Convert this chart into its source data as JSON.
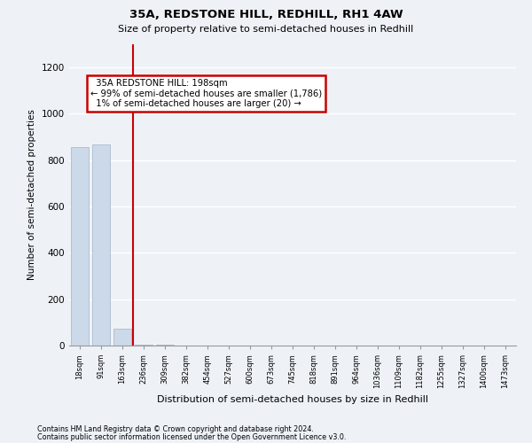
{
  "title": "35A, REDSTONE HILL, REDHILL, RH1 4AW",
  "subtitle": "Size of property relative to semi-detached houses in Redhill",
  "xlabel": "Distribution of semi-detached houses by size in Redhill",
  "ylabel": "Number of semi-detached properties",
  "footnote1": "Contains HM Land Registry data © Crown copyright and database right 2024.",
  "footnote2": "Contains public sector information licensed under the Open Government Licence v3.0.",
  "bin_labels": [
    "18sqm",
    "91sqm",
    "163sqm",
    "236sqm",
    "309sqm",
    "382sqm",
    "454sqm",
    "527sqm",
    "600sqm",
    "673sqm",
    "745sqm",
    "818sqm",
    "891sqm",
    "964sqm",
    "1036sqm",
    "1109sqm",
    "1182sqm",
    "1255sqm",
    "1327sqm",
    "1400sqm",
    "1473sqm"
  ],
  "bar_values": [
    855,
    868,
    73,
    5,
    2,
    1,
    1,
    0,
    0,
    0,
    0,
    0,
    0,
    0,
    0,
    0,
    0,
    0,
    0,
    0,
    0
  ],
  "bar_color": "#ccd9e8",
  "bar_edge_color": "#aabbd0",
  "annotation_line1": "35A REDSTONE HILL: 198sqm",
  "annotation_line2": "← 99% of semi-detached houses are smaller (1,786)",
  "annotation_line3": "1% of semi-detached houses are larger (20) →",
  "annotation_box_color": "#ffffff",
  "annotation_box_edge_color": "#cc0000",
  "red_line_color": "#cc0000",
  "ylim": [
    0,
    1300
  ],
  "yticks": [
    0,
    200,
    400,
    600,
    800,
    1000,
    1200
  ],
  "background_color": "#eef2f7",
  "grid_color": "#ffffff"
}
